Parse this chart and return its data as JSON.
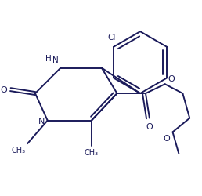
{
  "bg_color": "#ffffff",
  "line_color": "#1a1a5a",
  "line_width": 1.4,
  "fig_width": 2.58,
  "fig_height": 2.51,
  "dpi": 100,
  "xlim": [
    0,
    258
  ],
  "ylim": [
    0,
    251
  ]
}
